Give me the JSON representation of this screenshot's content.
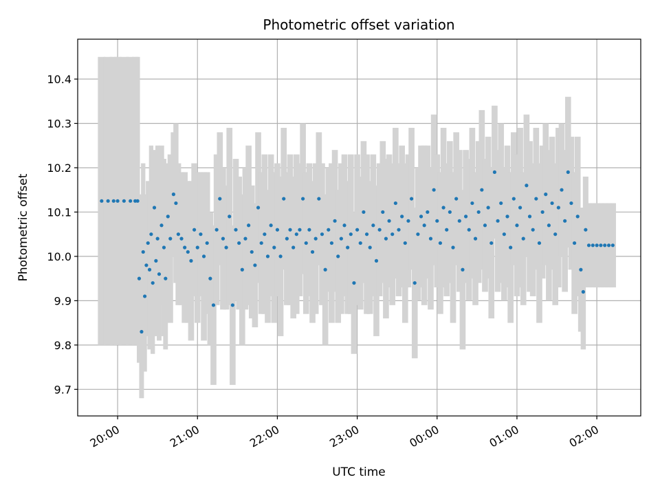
{
  "chart_data": {
    "type": "scatter",
    "title": "Photometric offset variation",
    "xlabel": "UTC time",
    "ylabel": "Photometric offset",
    "x_ticks": [
      "20:00",
      "21:00",
      "22:00",
      "23:00",
      "00:00",
      "01:00",
      "02:00"
    ],
    "y_ticks": [
      "9.7",
      "9.8",
      "9.9",
      "10.0",
      "10.1",
      "10.2",
      "10.3",
      "10.4"
    ],
    "y_tick_values": [
      9.7,
      9.8,
      9.9,
      10.0,
      10.1,
      10.2,
      10.3,
      10.4
    ],
    "x_unit": "hours after 20:00 UTC",
    "xlim": [
      -0.5,
      6.55
    ],
    "ylim": [
      9.64,
      10.49
    ],
    "grid": true,
    "series": [
      {
        "marker_color": "#1f77b4",
        "errorbar_color": "#d3d3d3",
        "points": [
          [
            -0.2,
            10.125,
            0.325
          ],
          [
            -0.12,
            10.125,
            0.325
          ],
          [
            -0.05,
            10.125,
            0.325
          ],
          [
            0.0,
            10.125,
            0.325
          ],
          [
            0.08,
            10.125,
            0.325
          ],
          [
            0.16,
            10.125,
            0.325
          ],
          [
            0.22,
            10.125,
            0.325
          ],
          [
            0.25,
            10.125,
            0.325
          ],
          [
            0.27,
            9.95,
            0.19
          ],
          [
            0.3,
            9.83,
            0.15
          ],
          [
            0.32,
            10.01,
            0.2
          ],
          [
            0.34,
            9.91,
            0.17
          ],
          [
            0.36,
            9.98,
            0.16
          ],
          [
            0.38,
            10.03,
            0.14
          ],
          [
            0.4,
            9.97,
            0.18
          ],
          [
            0.42,
            10.05,
            0.2
          ],
          [
            0.44,
            9.94,
            0.16
          ],
          [
            0.46,
            10.11,
            0.13
          ],
          [
            0.48,
            9.99,
            0.17
          ],
          [
            0.5,
            10.04,
            0.21
          ],
          [
            0.52,
            9.96,
            0.15
          ],
          [
            0.55,
            10.07,
            0.18
          ],
          [
            0.58,
            10.02,
            0.2
          ],
          [
            0.6,
            9.95,
            0.16
          ],
          [
            0.63,
            10.09,
            0.12
          ],
          [
            0.66,
            10.04,
            0.19
          ],
          [
            0.7,
            10.14,
            0.14
          ],
          [
            0.73,
            10.12,
            0.18
          ],
          [
            0.76,
            10.05,
            0.16
          ],
          [
            0.8,
            10.04,
            0.15
          ],
          [
            0.84,
            10.02,
            0.17
          ],
          [
            0.88,
            10.01,
            0.16
          ],
          [
            0.92,
            9.99,
            0.18
          ],
          [
            0.96,
            10.06,
            0.15
          ],
          [
            1.0,
            10.02,
            0.17
          ],
          [
            1.04,
            10.05,
            0.14
          ],
          [
            1.08,
            10.0,
            0.19
          ],
          [
            1.12,
            10.03,
            0.16
          ],
          [
            1.16,
            9.95,
            0.15
          ],
          [
            1.2,
            9.89,
            0.18
          ],
          [
            1.24,
            10.06,
            0.17
          ],
          [
            1.28,
            10.13,
            0.15
          ],
          [
            1.32,
            10.04,
            0.16
          ],
          [
            1.36,
            10.02,
            0.14
          ],
          [
            1.4,
            10.09,
            0.2
          ],
          [
            1.44,
            9.89,
            0.18
          ],
          [
            1.48,
            10.06,
            0.16
          ],
          [
            1.52,
            10.03,
            0.15
          ],
          [
            1.56,
            9.97,
            0.17
          ],
          [
            1.6,
            10.04,
            0.16
          ],
          [
            1.64,
            10.07,
            0.18
          ],
          [
            1.68,
            10.01,
            0.15
          ],
          [
            1.72,
            9.98,
            0.14
          ],
          [
            1.76,
            10.11,
            0.17
          ],
          [
            1.8,
            10.03,
            0.16
          ],
          [
            1.84,
            10.05,
            0.18
          ],
          [
            1.88,
            10.0,
            0.15
          ],
          [
            1.92,
            10.07,
            0.16
          ],
          [
            1.96,
            10.02,
            0.17
          ],
          [
            2.0,
            10.06,
            0.15
          ],
          [
            2.04,
            10.0,
            0.18
          ],
          [
            2.08,
            10.13,
            0.16
          ],
          [
            2.12,
            10.04,
            0.15
          ],
          [
            2.16,
            10.06,
            0.17
          ],
          [
            2.2,
            10.02,
            0.16
          ],
          [
            2.24,
            10.05,
            0.18
          ],
          [
            2.28,
            10.06,
            0.15
          ],
          [
            2.32,
            10.13,
            0.17
          ],
          [
            2.36,
            10.03,
            0.16
          ],
          [
            2.4,
            10.06,
            0.15
          ],
          [
            2.44,
            10.01,
            0.16
          ],
          [
            2.48,
            10.04,
            0.17
          ],
          [
            2.52,
            10.13,
            0.15
          ],
          [
            2.56,
            10.05,
            0.16
          ],
          [
            2.6,
            9.97,
            0.17
          ],
          [
            2.64,
            10.06,
            0.14
          ],
          [
            2.68,
            10.03,
            0.18
          ],
          [
            2.72,
            10.08,
            0.16
          ],
          [
            2.76,
            10.0,
            0.15
          ],
          [
            2.8,
            10.04,
            0.17
          ],
          [
            2.84,
            10.07,
            0.16
          ],
          [
            2.88,
            10.02,
            0.15
          ],
          [
            2.92,
            10.05,
            0.18
          ],
          [
            2.96,
            9.94,
            0.16
          ],
          [
            3.0,
            10.06,
            0.17
          ],
          [
            3.04,
            10.03,
            0.15
          ],
          [
            3.08,
            10.1,
            0.16
          ],
          [
            3.12,
            10.05,
            0.18
          ],
          [
            3.16,
            10.02,
            0.15
          ],
          [
            3.2,
            10.07,
            0.16
          ],
          [
            3.24,
            9.99,
            0.17
          ],
          [
            3.28,
            10.06,
            0.15
          ],
          [
            3.32,
            10.1,
            0.16
          ],
          [
            3.36,
            10.04,
            0.18
          ],
          [
            3.4,
            10.08,
            0.15
          ],
          [
            3.44,
            10.05,
            0.16
          ],
          [
            3.48,
            10.12,
            0.17
          ],
          [
            3.52,
            10.06,
            0.15
          ],
          [
            3.56,
            10.09,
            0.16
          ],
          [
            3.6,
            10.03,
            0.18
          ],
          [
            3.64,
            10.08,
            0.15
          ],
          [
            3.68,
            10.13,
            0.16
          ],
          [
            3.72,
            9.94,
            0.17
          ],
          [
            3.76,
            10.05,
            0.15
          ],
          [
            3.8,
            10.09,
            0.16
          ],
          [
            3.84,
            10.07,
            0.18
          ],
          [
            3.88,
            10.1,
            0.15
          ],
          [
            3.92,
            10.04,
            0.16
          ],
          [
            3.96,
            10.15,
            0.17
          ],
          [
            4.0,
            10.08,
            0.15
          ],
          [
            4.04,
            10.03,
            0.16
          ],
          [
            4.08,
            10.11,
            0.18
          ],
          [
            4.12,
            10.06,
            0.15
          ],
          [
            4.16,
            10.1,
            0.16
          ],
          [
            4.2,
            10.02,
            0.17
          ],
          [
            4.24,
            10.13,
            0.15
          ],
          [
            4.28,
            10.08,
            0.16
          ],
          [
            4.32,
            9.97,
            0.18
          ],
          [
            4.36,
            10.09,
            0.15
          ],
          [
            4.4,
            10.06,
            0.16
          ],
          [
            4.44,
            10.12,
            0.17
          ],
          [
            4.48,
            10.04,
            0.15
          ],
          [
            4.52,
            10.1,
            0.16
          ],
          [
            4.56,
            10.15,
            0.18
          ],
          [
            4.6,
            10.07,
            0.15
          ],
          [
            4.64,
            10.11,
            0.16
          ],
          [
            4.68,
            10.03,
            0.17
          ],
          [
            4.72,
            10.19,
            0.15
          ],
          [
            4.76,
            10.08,
            0.16
          ],
          [
            4.8,
            10.12,
            0.18
          ],
          [
            4.84,
            10.05,
            0.15
          ],
          [
            4.88,
            10.09,
            0.16
          ],
          [
            4.92,
            10.02,
            0.17
          ],
          [
            4.96,
            10.13,
            0.15
          ],
          [
            5.0,
            10.07,
            0.16
          ],
          [
            5.04,
            10.11,
            0.18
          ],
          [
            5.08,
            10.04,
            0.15
          ],
          [
            5.12,
            10.16,
            0.16
          ],
          [
            5.16,
            10.09,
            0.17
          ],
          [
            5.2,
            10.06,
            0.15
          ],
          [
            5.24,
            10.13,
            0.16
          ],
          [
            5.28,
            10.03,
            0.18
          ],
          [
            5.32,
            10.1,
            0.15
          ],
          [
            5.36,
            10.14,
            0.16
          ],
          [
            5.4,
            10.07,
            0.17
          ],
          [
            5.44,
            10.12,
            0.15
          ],
          [
            5.48,
            10.05,
            0.16
          ],
          [
            5.52,
            10.11,
            0.18
          ],
          [
            5.56,
            10.15,
            0.15
          ],
          [
            5.6,
            10.08,
            0.16
          ],
          [
            5.64,
            10.19,
            0.17
          ],
          [
            5.68,
            10.12,
            0.15
          ],
          [
            5.72,
            10.03,
            0.16
          ],
          [
            5.76,
            10.09,
            0.18
          ],
          [
            5.8,
            9.97,
            0.14
          ],
          [
            5.83,
            9.92,
            0.13
          ],
          [
            5.86,
            10.06,
            0.12
          ],
          [
            5.9,
            10.025,
            0.095
          ],
          [
            5.95,
            10.025,
            0.095
          ],
          [
            6.0,
            10.025,
            0.095
          ],
          [
            6.05,
            10.025,
            0.095
          ],
          [
            6.1,
            10.025,
            0.095
          ],
          [
            6.15,
            10.025,
            0.095
          ],
          [
            6.2,
            10.025,
            0.095
          ]
        ]
      }
    ]
  }
}
